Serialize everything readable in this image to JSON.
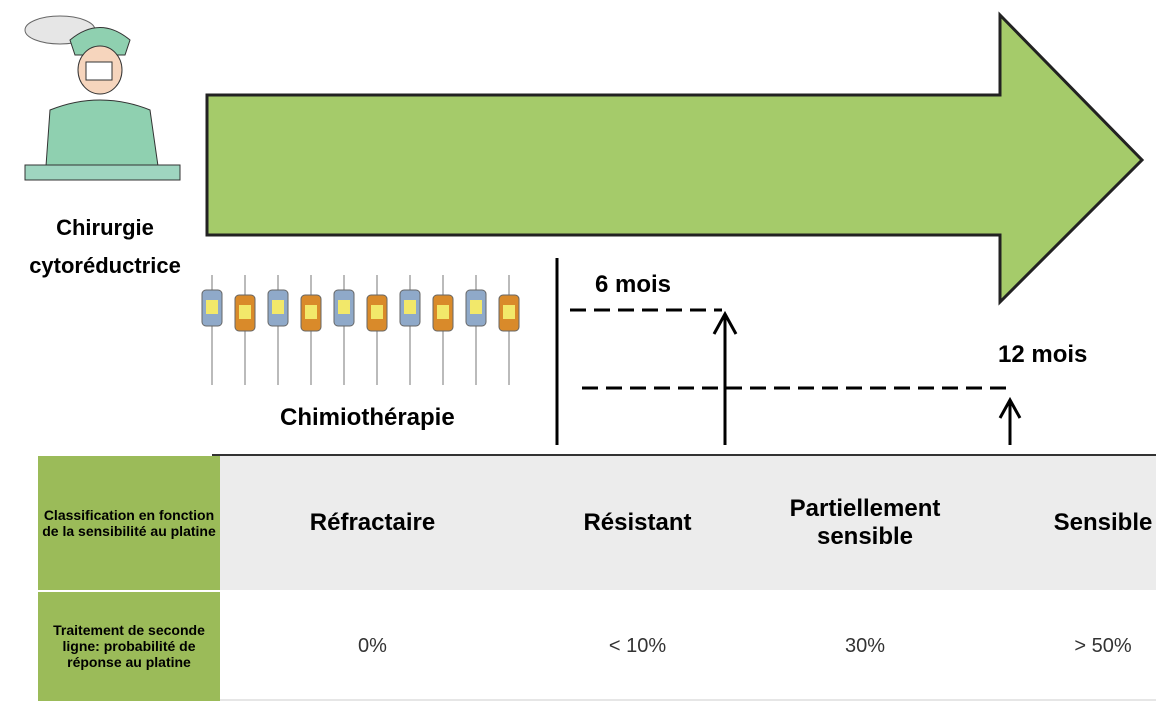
{
  "surgery": {
    "label_line1": "Chirurgie",
    "label_line2": "cytoréductrice"
  },
  "chemotherapy": {
    "label": "Chimiothérapie"
  },
  "markers": [
    {
      "label": "6 mois"
    },
    {
      "label": "12 mois"
    }
  ],
  "table": {
    "rows": [
      [
        "Classification en fonction de la sensibilité au platine",
        "Réfractaire",
        "Résistant",
        "Partiellement sensible",
        "Sensible"
      ],
      [
        "Traitement de seconde ligne: probabilité de réponse au platine",
        "0%",
        "< 10%",
        "30%",
        "> 50%"
      ]
    ]
  }
}
